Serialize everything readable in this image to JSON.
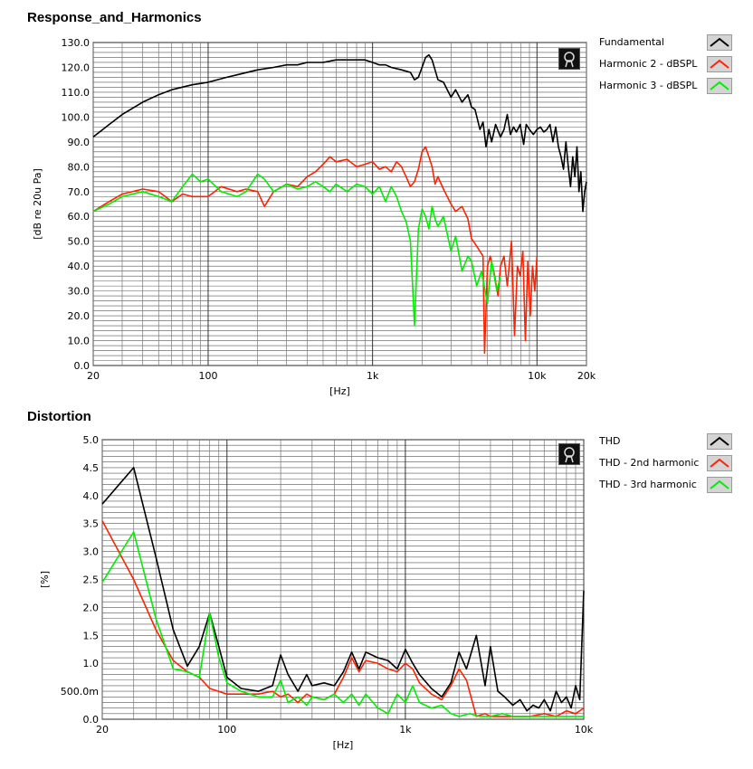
{
  "chart_data": [
    {
      "type": "line",
      "title": "Response_and_Harmonics",
      "xlabel": "[Hz]",
      "ylabel": "[dB re 20u Pa]",
      "x_scale": "log",
      "xlim": [
        20,
        20000
      ],
      "ylim": [
        0,
        130
      ],
      "x_ticks": [
        {
          "value": 20,
          "label": "20"
        },
        {
          "value": 100,
          "label": "100"
        },
        {
          "value": 1000,
          "label": "1k"
        },
        {
          "value": 10000,
          "label": "10k"
        },
        {
          "value": 20000,
          "label": "20k"
        }
      ],
      "y_ticks": [
        {
          "value": 0,
          "label": "0.0"
        },
        {
          "value": 10,
          "label": "10.0"
        },
        {
          "value": 20,
          "label": "20.0"
        },
        {
          "value": 30,
          "label": "30.0"
        },
        {
          "value": 40,
          "label": "40.0"
        },
        {
          "value": 50,
          "label": "50.0"
        },
        {
          "value": 60,
          "label": "60.0"
        },
        {
          "value": 70,
          "label": "70.0"
        },
        {
          "value": 80,
          "label": "80.0"
        },
        {
          "value": 90,
          "label": "90.0"
        },
        {
          "value": 100,
          "label": "100.0"
        },
        {
          "value": 110,
          "label": "110.0"
        },
        {
          "value": 120,
          "label": "120.0"
        },
        {
          "value": 130,
          "label": "130.0"
        }
      ],
      "grid": true,
      "legend_position": "right",
      "series": [
        {
          "name": "Fundamental",
          "color": "#000000",
          "x": [
            20,
            25,
            30,
            40,
            50,
            60,
            80,
            100,
            130,
            150,
            200,
            250,
            300,
            350,
            400,
            500,
            600,
            700,
            800,
            900,
            1000,
            1100,
            1200,
            1300,
            1500,
            1700,
            1800,
            1900,
            2000,
            2100,
            2200,
            2300,
            2400,
            2500,
            2700,
            3000,
            3200,
            3500,
            3800,
            4000,
            4200,
            4500,
            4700,
            4900,
            5100,
            5300,
            5600,
            6000,
            6300,
            6600,
            6900,
            7200,
            7500,
            7900,
            8300,
            8600,
            9000,
            9500,
            10000,
            10500,
            11000,
            11500,
            12000,
            12500,
            13000,
            13500,
            14000,
            14500,
            15000,
            15500,
            16000,
            16500,
            17000,
            17500,
            18000,
            18500,
            19000,
            19500,
            20000
          ],
          "y": [
            92,
            97,
            101,
            106,
            109,
            111,
            113,
            114,
            116,
            117,
            119,
            120,
            121,
            121,
            122,
            122,
            123,
            123,
            123,
            123,
            122,
            121,
            121,
            120,
            119,
            118,
            115,
            116,
            120,
            124,
            125,
            123,
            119,
            115,
            114,
            108,
            111,
            106,
            109,
            104,
            103,
            95,
            98,
            88,
            95,
            90,
            97,
            92,
            95,
            101,
            93,
            96,
            94,
            97,
            89,
            97,
            95,
            93,
            95,
            96,
            94,
            95,
            97,
            90,
            96,
            88,
            84,
            79,
            90,
            80,
            72,
            84,
            76,
            88,
            70,
            78,
            62,
            70,
            74
          ]
        },
        {
          "name": "Harmonic 2 - dBSPL",
          "color": "#ff2200",
          "x": [
            20,
            25,
            30,
            40,
            50,
            60,
            70,
            80,
            100,
            120,
            150,
            170,
            200,
            220,
            250,
            300,
            350,
            400,
            450,
            500,
            550,
            600,
            700,
            800,
            900,
            1000,
            1100,
            1200,
            1300,
            1400,
            1500,
            1600,
            1700,
            1800,
            1900,
            2000,
            2100,
            2200,
            2300,
            2400,
            2500,
            2700,
            3000,
            3200,
            3500,
            3800,
            4000,
            4200,
            4500,
            4700,
            4800,
            4900,
            5000,
            5200,
            5500,
            5800,
            6000,
            6300,
            6600,
            7000,
            7300,
            7600,
            7900,
            8200,
            8500,
            8800,
            9100,
            9400,
            9700,
            10000
          ],
          "y": [
            62,
            66,
            69,
            71,
            70,
            66,
            69,
            68,
            68,
            72,
            70,
            71,
            70,
            64,
            70,
            73,
            72,
            76,
            78,
            81,
            84,
            82,
            83,
            80,
            81,
            82,
            79,
            80,
            78,
            82,
            80,
            76,
            72,
            74,
            79,
            86,
            88,
            84,
            80,
            73,
            76,
            71,
            65,
            62,
            64,
            59,
            51,
            49,
            46,
            44,
            5,
            22,
            40,
            44,
            37,
            28,
            40,
            44,
            32,
            50,
            12,
            40,
            36,
            46,
            10,
            42,
            20,
            40,
            30,
            44
          ]
        },
        {
          "name": "Harmonic 3 - dBSPL",
          "color": "#00ee00",
          "x": [
            20,
            25,
            30,
            40,
            50,
            60,
            70,
            80,
            90,
            100,
            120,
            150,
            170,
            200,
            220,
            250,
            300,
            350,
            400,
            450,
            500,
            550,
            600,
            700,
            800,
            900,
            1000,
            1100,
            1200,
            1300,
            1400,
            1500,
            1600,
            1700,
            1800,
            1900,
            2000,
            2100,
            2200,
            2300,
            2400,
            2500,
            2700,
            3000,
            3200,
            3500,
            3800,
            4000,
            4300,
            4600,
            5000,
            5300,
            5700,
            6000
          ],
          "y": [
            62,
            65,
            68,
            70,
            68,
            66,
            72,
            77,
            74,
            75,
            70,
            68,
            70,
            77,
            75,
            70,
            73,
            71,
            72,
            74,
            72,
            70,
            73,
            70,
            73,
            72,
            69,
            72,
            66,
            72,
            68,
            62,
            58,
            50,
            16,
            55,
            63,
            60,
            55,
            64,
            59,
            56,
            60,
            46,
            52,
            38,
            44,
            42,
            32,
            38,
            25,
            42,
            30,
            36
          ]
        }
      ]
    },
    {
      "type": "line",
      "title": "Distortion",
      "xlabel": "[Hz]",
      "ylabel": "[%]",
      "x_scale": "log",
      "xlim": [
        20,
        10000
      ],
      "ylim": [
        0,
        5
      ],
      "x_ticks": [
        {
          "value": 20,
          "label": "20"
        },
        {
          "value": 100,
          "label": "100"
        },
        {
          "value": 1000,
          "label": "1k"
        },
        {
          "value": 10000,
          "label": "10k"
        }
      ],
      "y_ticks": [
        {
          "value": 0,
          "label": "0.0"
        },
        {
          "value": 0.5,
          "label": "500.0m"
        },
        {
          "value": 1,
          "label": "1.0"
        },
        {
          "value": 1.5,
          "label": "1.5"
        },
        {
          "value": 2,
          "label": "2.0"
        },
        {
          "value": 2.5,
          "label": "2.5"
        },
        {
          "value": 3,
          "label": "3.0"
        },
        {
          "value": 3.5,
          "label": "3.5"
        },
        {
          "value": 4,
          "label": "4.0"
        },
        {
          "value": 4.5,
          "label": "4.5"
        },
        {
          "value": 5,
          "label": "5.0"
        }
      ],
      "grid": true,
      "legend_position": "right",
      "series": [
        {
          "name": "THD",
          "color": "#000000",
          "x": [
            20,
            30,
            40,
            50,
            60,
            70,
            80,
            90,
            100,
            120,
            150,
            180,
            200,
            220,
            250,
            280,
            300,
            350,
            400,
            450,
            500,
            550,
            600,
            700,
            800,
            900,
            1000,
            1100,
            1200,
            1400,
            1600,
            1800,
            2000,
            2200,
            2500,
            2800,
            3000,
            3300,
            3600,
            4000,
            4400,
            4800,
            5200,
            5600,
            6000,
            6500,
            7000,
            7500,
            8000,
            8500,
            9000,
            9500,
            10000
          ],
          "y": [
            3.85,
            4.5,
            2.9,
            1.6,
            0.95,
            1.3,
            1.9,
            1.3,
            0.75,
            0.55,
            0.5,
            0.6,
            1.15,
            0.8,
            0.5,
            0.8,
            0.6,
            0.65,
            0.6,
            0.85,
            1.2,
            0.9,
            1.2,
            1.1,
            1.05,
            0.9,
            1.25,
            1.0,
            0.8,
            0.55,
            0.4,
            0.65,
            1.2,
            0.9,
            1.5,
            0.6,
            1.3,
            0.5,
            0.4,
            0.25,
            0.35,
            0.15,
            0.25,
            0.2,
            0.35,
            0.15,
            0.5,
            0.3,
            0.4,
            0.2,
            0.6,
            0.35,
            2.3
          ]
        },
        {
          "name": "THD - 2nd harmonic",
          "color": "#ff2200",
          "x": [
            20,
            30,
            40,
            50,
            60,
            70,
            80,
            100,
            120,
            150,
            180,
            200,
            220,
            250,
            280,
            300,
            350,
            400,
            450,
            500,
            550,
            600,
            700,
            800,
            900,
            1000,
            1100,
            1200,
            1400,
            1600,
            1800,
            2000,
            2200,
            2500,
            2800,
            3000,
            3500,
            4000,
            5000,
            6000,
            7000,
            8000,
            9000,
            10000
          ],
          "y": [
            3.55,
            2.5,
            1.6,
            1.05,
            0.85,
            0.75,
            0.55,
            0.45,
            0.45,
            0.45,
            0.5,
            0.4,
            0.45,
            0.3,
            0.45,
            0.4,
            0.35,
            0.45,
            0.75,
            1.1,
            0.85,
            1.05,
            1.0,
            0.9,
            0.85,
            1.0,
            0.9,
            0.65,
            0.45,
            0.35,
            0.6,
            0.9,
            0.7,
            0.05,
            0.1,
            0.05,
            0.05,
            0.05,
            0.05,
            0.1,
            0.05,
            0.15,
            0.1,
            0.2
          ]
        },
        {
          "name": "THD - 3rd harmonic",
          "color": "#00ee00",
          "x": [
            20,
            30,
            40,
            50,
            60,
            70,
            80,
            90,
            100,
            120,
            150,
            180,
            200,
            220,
            250,
            280,
            300,
            350,
            400,
            450,
            500,
            550,
            600,
            700,
            800,
            900,
            1000,
            1100,
            1200,
            1400,
            1600,
            1800,
            2000,
            2300,
            2600,
            3000,
            3500,
            4000,
            5000,
            6000,
            7000,
            8000,
            9000,
            10000
          ],
          "y": [
            2.45,
            3.35,
            1.8,
            0.9,
            0.85,
            0.75,
            1.9,
            1.1,
            0.65,
            0.5,
            0.4,
            0.4,
            0.7,
            0.3,
            0.4,
            0.25,
            0.4,
            0.35,
            0.45,
            0.3,
            0.45,
            0.25,
            0.45,
            0.2,
            0.1,
            0.45,
            0.3,
            0.6,
            0.3,
            0.2,
            0.25,
            0.1,
            0.05,
            0.1,
            0.05,
            0.05,
            0.1,
            0.05,
            0.05,
            0.05,
            0.05,
            0.05,
            0.05,
            0.05
          ]
        }
      ]
    }
  ]
}
